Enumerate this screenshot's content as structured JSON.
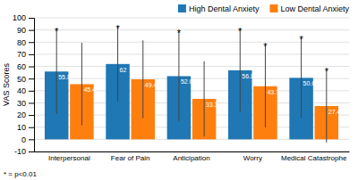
{
  "chart_data": {
    "type": "bar",
    "categories": [
      "Interpersonal",
      "Fear of Pain",
      "Anticipation",
      "Worry",
      "Medical Catastrophe"
    ],
    "series": [
      {
        "name": "High Dental Anxiety",
        "values": [
          55.8,
          62.0,
          52.0,
          56.8,
          50.6
        ],
        "error": [
          35.0,
          31.0,
          37.0,
          34.0,
          33.0
        ],
        "value_labels": [
          "55.8",
          "62",
          "52.0",
          "56.8",
          "50.6"
        ]
      },
      {
        "name": "Low Dental Anxiety",
        "values": [
          45.4,
          49.4,
          33.3,
          43.7,
          27.4
        ],
        "error": [
          34.0,
          32.0,
          31.0,
          34.0,
          30.0
        ]
      }
    ],
    "ylabel": "VAS Scores",
    "ylim": [
      -10,
      100
    ],
    "yticks": [
      -10,
      0,
      10,
      20,
      30,
      40,
      50,
      60,
      70,
      80,
      90,
      100
    ],
    "grid": true,
    "legend": "upper right",
    "data_labels": true,
    "annotations": [
      {
        "text": "*",
        "category": "Interpersonal",
        "series": "High Dental Anxiety"
      },
      {
        "text": "*",
        "category": "Fear of Pain",
        "series": "High Dental Anxiety"
      },
      {
        "text": "*",
        "category": "Anticipation",
        "series": "High Dental Anxiety"
      },
      {
        "text": "*",
        "category": "Worry",
        "series": "High Dental Anxiety"
      },
      {
        "text": "*",
        "category": "Medical Catastrophe",
        "series": "High Dental Anxiety"
      },
      {
        "text": "*",
        "category": "Worry",
        "series": "Low Dental Anxiety"
      },
      {
        "text": "*",
        "category": "Medical Catastrophe",
        "series": "Low Dental Anxiety"
      }
    ],
    "footnote": "* = p<0.01"
  }
}
